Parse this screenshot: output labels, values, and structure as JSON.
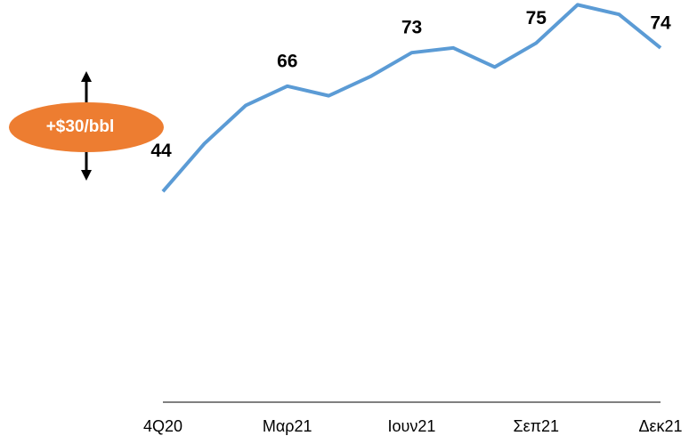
{
  "chart_data": {
    "type": "line",
    "categories": [
      "4Q20",
      null,
      null,
      "Μαρ21",
      null,
      null,
      "Ιουν21",
      null,
      null,
      "Σεπ21",
      null,
      null,
      "Δεκ21"
    ],
    "series": [
      {
        "color": "#5b9bd5",
        "values": [
          44,
          54,
          62,
          66,
          64,
          68,
          73,
          74,
          70,
          75,
          83,
          81,
          74
        ],
        "value_labels": [
          "44",
          null,
          null,
          "66",
          null,
          null,
          "73",
          null,
          null,
          "75",
          null,
          null,
          "74"
        ]
      }
    ],
    "ylim": [
      0,
      84
    ],
    "annotation": "+$30/bbl"
  }
}
